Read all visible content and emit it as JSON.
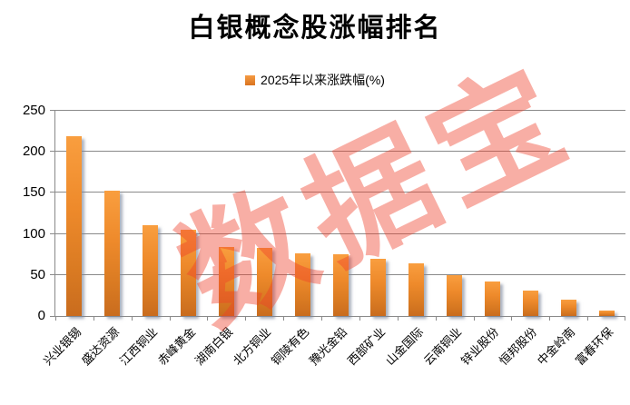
{
  "title": "白银概念股涨幅排名",
  "legend": {
    "label": "2025年以来涨跌幅(%)",
    "swatch_color": "#E8821E"
  },
  "watermark_text": "数据宝",
  "colors": {
    "bar_gradient_top": "#F99E3F",
    "bar_gradient_bottom": "#C96C1E",
    "gridline": "#8A8A8A",
    "axis_text": "#000000",
    "watermark": "rgba(238,62,40,0.42)"
  },
  "chart_data": {
    "type": "bar",
    "title": "白银概念股涨幅排名",
    "series_label": "2025年以来涨跌幅(%)",
    "categories": [
      "兴业银锡",
      "盛达资源",
      "江西铜业",
      "赤峰黄金",
      "湖南白银",
      "北方铜业",
      "铜陵有色",
      "豫光金铅",
      "西部矿业",
      "山金国际",
      "云南铜业",
      "锌业股份",
      "恒邦股份",
      "中金岭南",
      "富春环保"
    ],
    "values": [
      219,
      153,
      111,
      105,
      84,
      83,
      76,
      75,
      70,
      64,
      50,
      42,
      31,
      20,
      7
    ],
    "xlabel": "",
    "ylabel": "",
    "ylim": [
      0,
      250
    ],
    "yticks": [
      0,
      50,
      100,
      150,
      200,
      250
    ],
    "grid": true,
    "legend_position": "top-center",
    "x_label_rotation_deg": 45
  }
}
